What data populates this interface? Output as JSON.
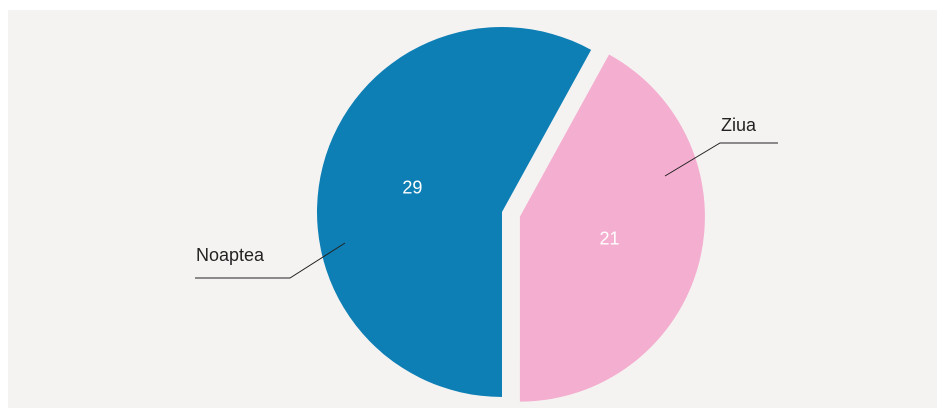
{
  "chart_data": {
    "type": "pie",
    "categories": [
      "Noaptea",
      "Ziua"
    ],
    "values": [
      29,
      21
    ],
    "colors": [
      "#0e7fb5",
      "#f4aecf"
    ],
    "startangle": 180,
    "explode": [
      0,
      0.1
    ]
  }
}
